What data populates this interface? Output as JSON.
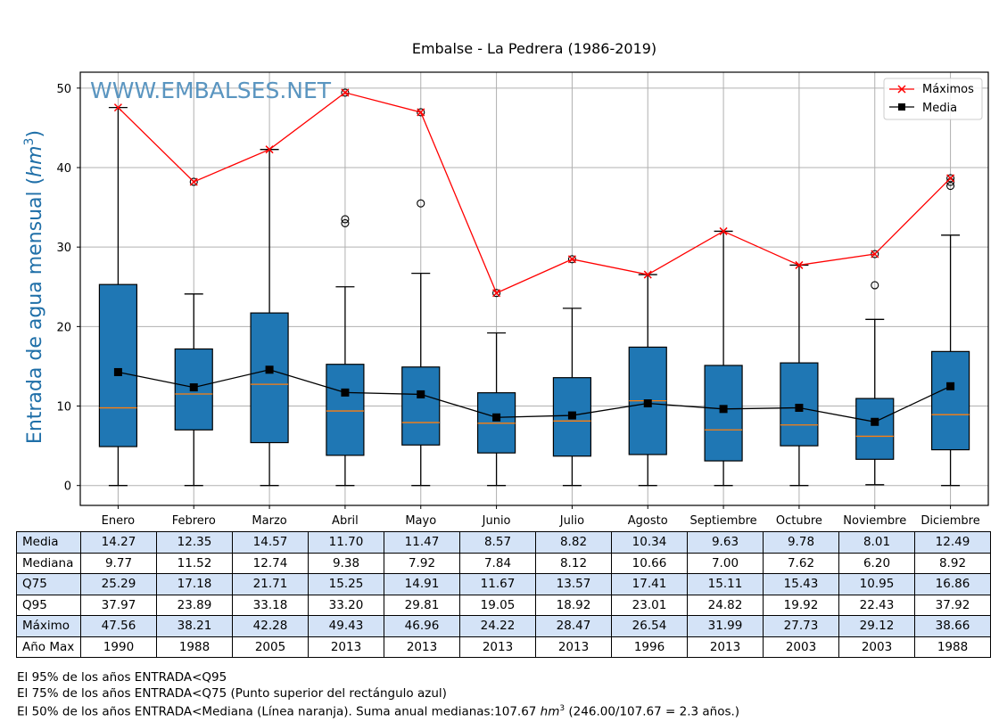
{
  "chart_data": {
    "type": "box",
    "title": "Embalse - La Pedrera (1986-2019)",
    "watermark": "WWW.EMBALSES.NET",
    "xlabel": "",
    "ylabel": "Entrada de agua mensual (hm³)",
    "ylabel_main": "Entrada de agua mensual (",
    "ylabel_unit": "hm",
    "ylabel_exp": "3",
    "ylabel_close": ")",
    "ylim": [
      -2.5,
      52
    ],
    "yticks": [
      0,
      10,
      20,
      30,
      40,
      50
    ],
    "grid": true,
    "legend_position": "top-right",
    "categories": [
      "Enero",
      "Febrero",
      "Marzo",
      "Abril",
      "Mayo",
      "Junio",
      "Julio",
      "Agosto",
      "Septiembre",
      "Octubre",
      "Noviembre",
      "Diciembre"
    ],
    "boxes": {
      "q25": [
        4.9,
        7.0,
        5.4,
        3.8,
        5.1,
        4.1,
        3.7,
        3.9,
        3.1,
        5.0,
        3.3,
        4.5
      ],
      "median": [
        9.77,
        11.52,
        12.74,
        9.38,
        7.92,
        7.84,
        8.12,
        10.66,
        7.0,
        7.62,
        6.2,
        8.92
      ],
      "q75": [
        25.29,
        17.18,
        21.71,
        15.25,
        14.91,
        11.67,
        13.57,
        17.41,
        15.11,
        15.43,
        10.95,
        16.86
      ],
      "whisker_low": [
        0,
        0,
        0,
        0,
        0,
        0,
        0,
        0,
        0,
        0,
        0.1,
        0
      ],
      "whisker_high": [
        47.56,
        24.1,
        42.28,
        25.0,
        26.7,
        19.2,
        22.3,
        26.54,
        31.99,
        27.73,
        20.9,
        31.5
      ],
      "outliers": [
        [],
        [
          38.21
        ],
        [],
        [
          49.43,
          33.5,
          33.0
        ],
        [
          46.96,
          35.5
        ],
        [
          24.22
        ],
        [
          28.47
        ],
        [],
        [],
        [],
        [
          29.12,
          25.2
        ],
        [
          38.66,
          38.2,
          37.7
        ]
      ]
    },
    "series": [
      {
        "name": "Máximos",
        "color": "#ff0000",
        "marker": "x",
        "values": [
          47.56,
          38.21,
          42.28,
          49.43,
          46.96,
          24.22,
          28.47,
          26.54,
          31.99,
          27.73,
          29.12,
          38.66
        ]
      },
      {
        "name": "Media",
        "color": "#000000",
        "marker": "square",
        "values": [
          14.27,
          12.35,
          14.57,
          11.7,
          11.47,
          8.57,
          8.82,
          10.34,
          9.63,
          9.78,
          8.01,
          12.49
        ]
      }
    ],
    "colors": {
      "box_fill": "#1f77b4",
      "median_line": "#ff7f0e",
      "grid": "#b0b0b0"
    }
  },
  "table": {
    "rows": [
      {
        "label": "Media",
        "shaded": true,
        "values": [
          "14.27",
          "12.35",
          "14.57",
          "11.70",
          "11.47",
          "8.57",
          "8.82",
          "10.34",
          "9.63",
          "9.78",
          "8.01",
          "12.49"
        ]
      },
      {
        "label": "Mediana",
        "shaded": false,
        "values": [
          "9.77",
          "11.52",
          "12.74",
          "9.38",
          "7.92",
          "7.84",
          "8.12",
          "10.66",
          "7.00",
          "7.62",
          "6.20",
          "8.92"
        ]
      },
      {
        "label": "Q75",
        "shaded": true,
        "values": [
          "25.29",
          "17.18",
          "21.71",
          "15.25",
          "14.91",
          "11.67",
          "13.57",
          "17.41",
          "15.11",
          "15.43",
          "10.95",
          "16.86"
        ]
      },
      {
        "label": "Q95",
        "shaded": false,
        "values": [
          "37.97",
          "23.89",
          "33.18",
          "33.20",
          "29.81",
          "19.05",
          "18.92",
          "23.01",
          "24.82",
          "19.92",
          "22.43",
          "37.92"
        ]
      },
      {
        "label": "Máximo",
        "shaded": true,
        "values": [
          "47.56",
          "38.21",
          "42.28",
          "49.43",
          "46.96",
          "24.22",
          "28.47",
          "26.54",
          "31.99",
          "27.73",
          "29.12",
          "38.66"
        ]
      },
      {
        "label": "Año Max",
        "shaded": false,
        "values": [
          "1990",
          "1988",
          "2005",
          "2013",
          "2013",
          "2013",
          "2013",
          "1996",
          "2013",
          "2003",
          "2003",
          "1988"
        ]
      }
    ]
  },
  "notes": {
    "line1": "El 95% de los años ENTRADA<Q95",
    "line2": "El 75% de los años ENTRADA<Q75 (Punto superior del rectángulo azul)",
    "line3_a": "El 50% de los años ENTRADA<Mediana (Línea naranja). Suma anual medianas:107.67 ",
    "line3_unit": "hm",
    "line3_exp": "3",
    "line3_b": " (246.00/107.67 = 2.3 años.)"
  }
}
